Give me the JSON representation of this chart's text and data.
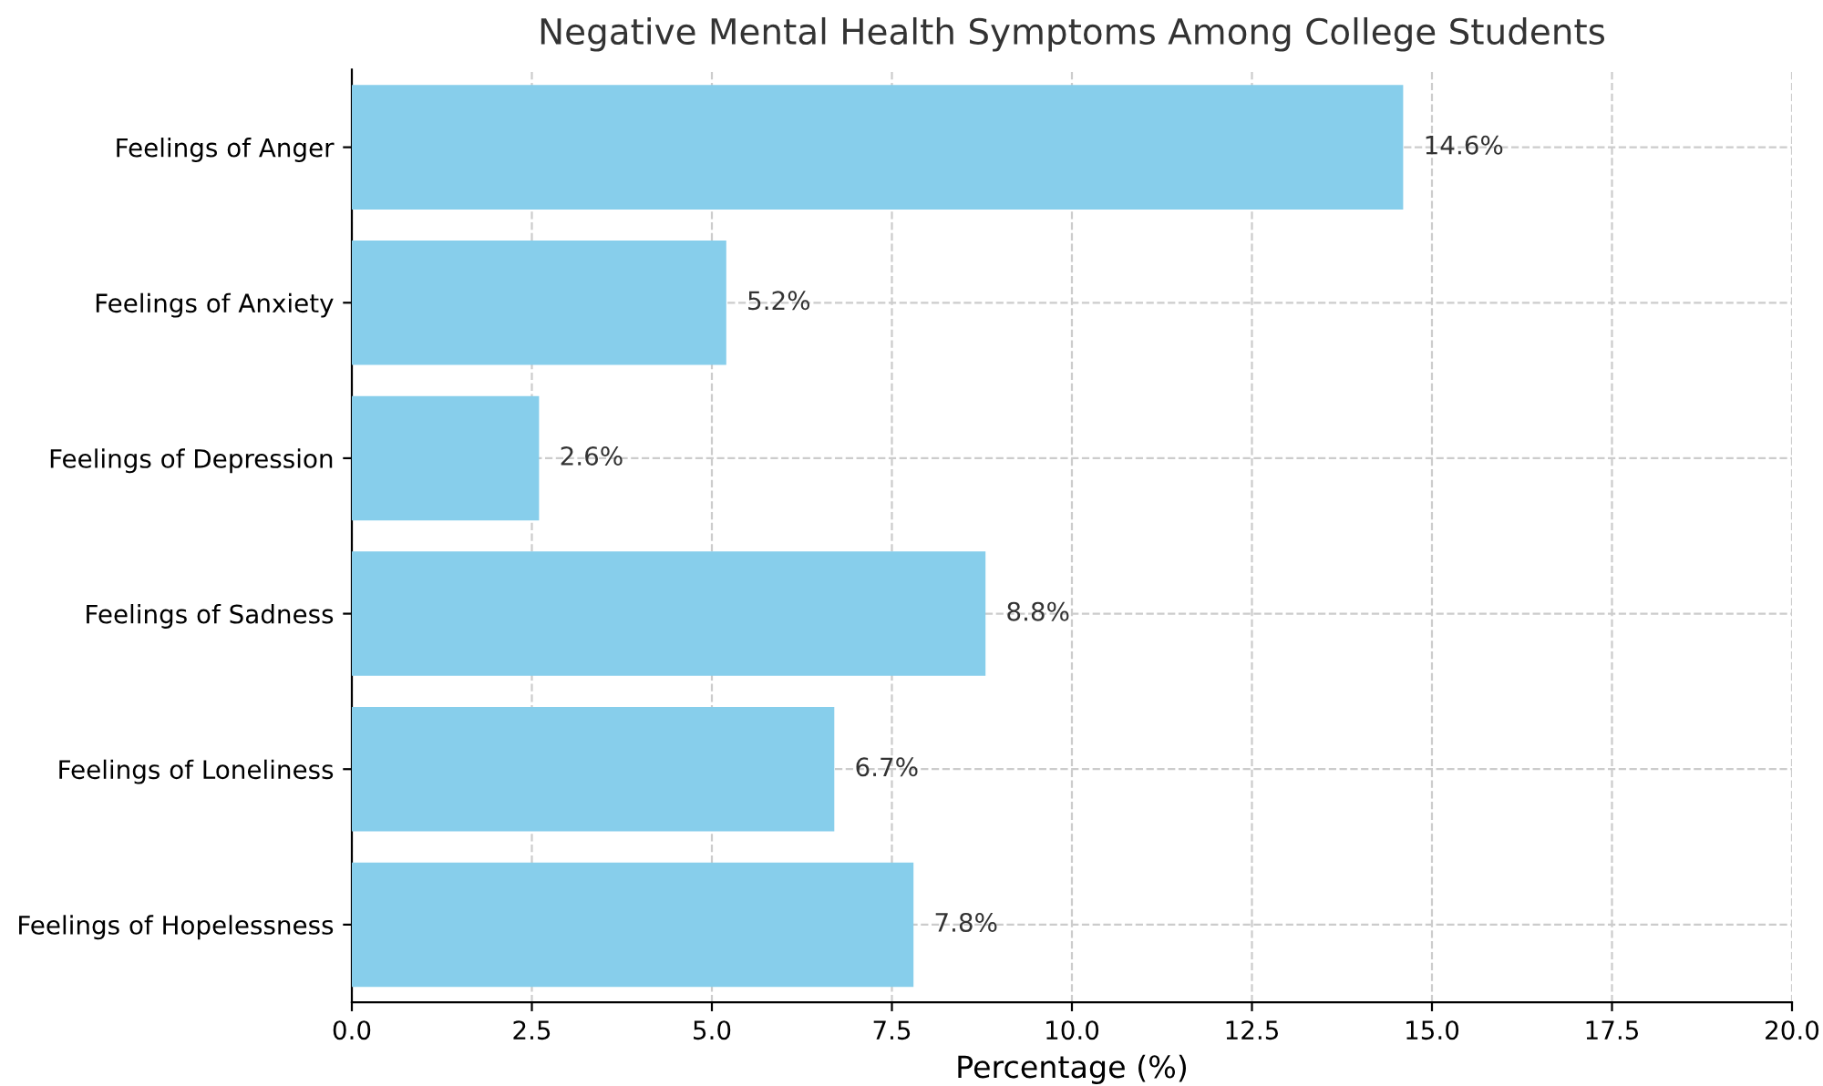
{
  "chart_data": {
    "type": "bar",
    "orientation": "horizontal",
    "title": "Negative Mental Health Symptoms Among College Students",
    "xlabel": "Percentage (%)",
    "categories": [
      "Feelings of Anger",
      "Feelings of Anxiety",
      "Feelings of Depression",
      "Feelings of Sadness",
      "Feelings of Loneliness",
      "Feelings of Hopelessness"
    ],
    "values": [
      14.6,
      5.2,
      2.6,
      8.8,
      6.7,
      7.8
    ],
    "value_labels": [
      "14.6%",
      "5.2%",
      "2.6%",
      "8.8%",
      "6.7%",
      "7.8%"
    ],
    "color": "#87ceeb",
    "xlim": [
      0,
      20
    ],
    "xticks": [
      {
        "value": 0,
        "label": "0.0"
      },
      {
        "value": 2.5,
        "label": "2.5"
      },
      {
        "value": 5,
        "label": "5.0"
      },
      {
        "value": 7.5,
        "label": "7.5"
      },
      {
        "value": 10,
        "label": "10.0"
      },
      {
        "value": 12.5,
        "label": "12.5"
      },
      {
        "value": 15,
        "label": "15.0"
      },
      {
        "value": 17.5,
        "label": "17.5"
      },
      {
        "value": 20,
        "label": "20.0"
      }
    ],
    "grid": true
  }
}
